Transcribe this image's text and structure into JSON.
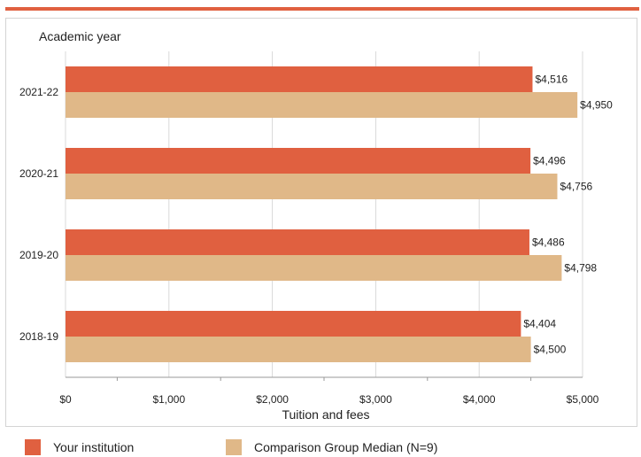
{
  "chart_data": {
    "type": "bar",
    "orientation": "horizontal",
    "title": "",
    "ylabel": "Academic year",
    "xlabel": "Tuition and fees",
    "categories": [
      "2021-22",
      "2020-21",
      "2019-20",
      "2018-19"
    ],
    "series": [
      {
        "name": "Your institution",
        "color": "#e06040",
        "values": [
          4516,
          4496,
          4486,
          4404
        ]
      },
      {
        "name": "Comparison Group Median (N=9)",
        "color": "#e0b888",
        "values": [
          4950,
          4756,
          4798,
          4500
        ]
      }
    ],
    "value_labels": {
      "Your institution": [
        "$4,516",
        "$4,496",
        "$4,486",
        "$4,404"
      ],
      "Comparison Group Median (N=9)": [
        "$4,950",
        "$4,756",
        "$4,798",
        "$4,500"
      ]
    },
    "xlim": [
      0,
      5000
    ],
    "xticks": [
      0,
      1000,
      2000,
      3000,
      4000,
      5000
    ],
    "xtick_labels": [
      "$0",
      "$1,000",
      "$2,000",
      "$3,000",
      "$4,000",
      "$5,000"
    ],
    "grid": true,
    "legend_position": "bottom"
  }
}
